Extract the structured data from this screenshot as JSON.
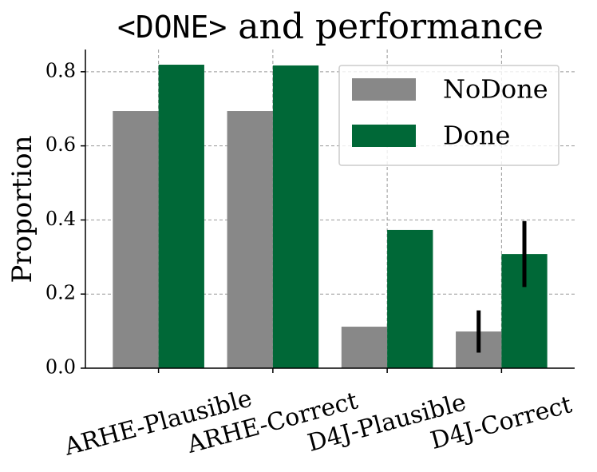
{
  "chart_data": {
    "type": "bar",
    "title": [
      "<DONE>",
      "and performance"
    ],
    "y_label": "Proportion",
    "categories": [
      "ARHE-Plausible",
      "ARHE-Correct",
      "D4J-Plausible",
      "D4J-Correct"
    ],
    "series": [
      {
        "name": "NoDone",
        "color": "#888888",
        "values": [
          0.694,
          0.694,
          0.112,
          0.099
        ],
        "errors": [
          null,
          null,
          null,
          0.057
        ]
      },
      {
        "name": "Done",
        "color": "#006837",
        "values": [
          0.819,
          0.817,
          0.373,
          0.308
        ],
        "errors": [
          null,
          null,
          null,
          0.089
        ]
      }
    ],
    "ylim": [
      0,
      0.86
    ],
    "yticks": [
      {
        "value": 0,
        "label": "0.0"
      },
      0.2,
      0.4,
      0.6,
      0.8
    ],
    "grid": true,
    "legend": "upper right"
  }
}
